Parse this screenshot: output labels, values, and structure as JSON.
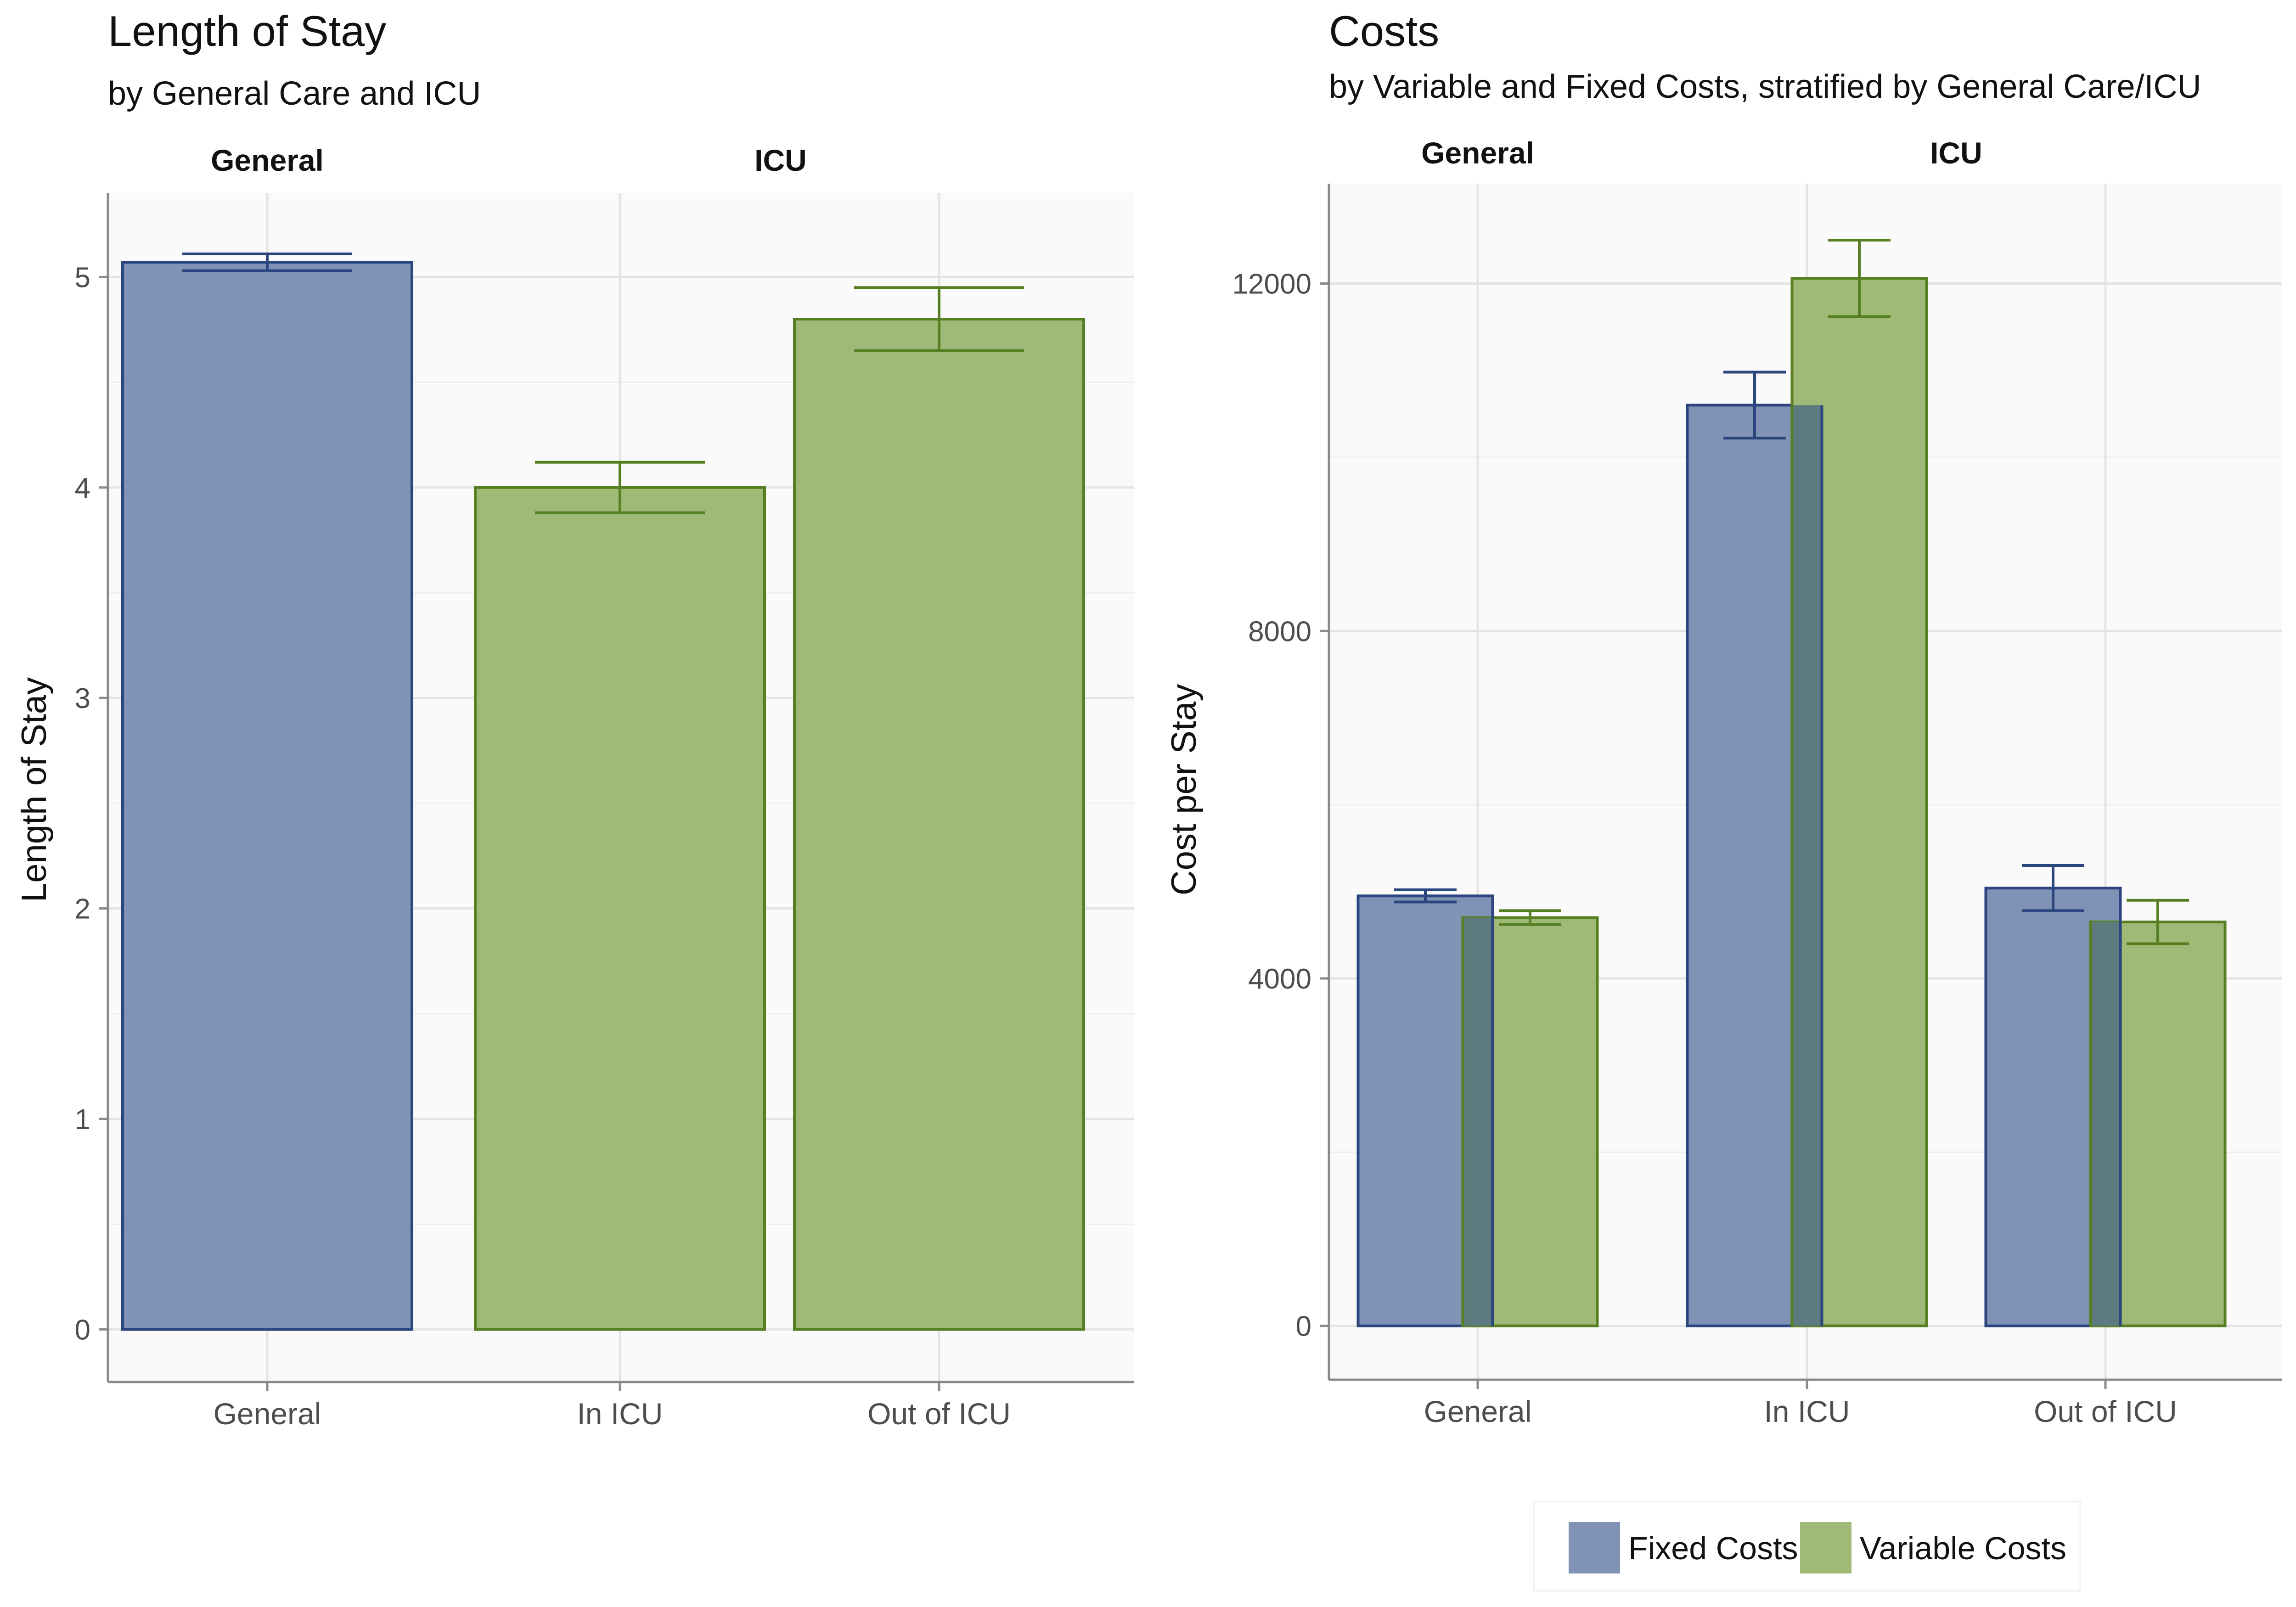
{
  "colors": {
    "fixed_fill": "#8093b6",
    "fixed_stroke": "#2b467f",
    "variable_fill": "#9fb976",
    "variable_stroke": "#567f22",
    "overlap_fill": "#5d7a7e",
    "panel_bg": "#fafafa",
    "grid": "#e4e4e4",
    "axis": "#8a8a8a",
    "tick_text": "#4d4d4d",
    "title_text": "#111111"
  },
  "chart_data": [
    {
      "type": "bar",
      "title": "Length of Stay",
      "subtitle": "by General Care and ICU",
      "ylabel": "Length of Stay",
      "xlabel": "",
      "ylim": [
        -0.25,
        5.4
      ],
      "yticks": [
        "0",
        "1",
        "2",
        "3",
        "4",
        "5"
      ],
      "facets": [
        "General",
        "ICU"
      ],
      "categories": [
        "General",
        "In ICU",
        "Out of ICU"
      ],
      "grid": true,
      "bars": [
        {
          "category": "General",
          "facet": "General",
          "series": "General",
          "value": 5.07,
          "err_low": 5.03,
          "err_high": 5.11
        },
        {
          "category": "In ICU",
          "facet": "ICU",
          "series": "ICU",
          "value": 4.0,
          "err_low": 3.88,
          "err_high": 4.12
        },
        {
          "category": "Out of ICU",
          "facet": "ICU",
          "series": "ICU",
          "value": 4.8,
          "err_low": 4.65,
          "err_high": 4.95
        }
      ]
    },
    {
      "type": "bar",
      "title": "Costs",
      "subtitle": "by Variable and Fixed Costs, stratified by General Care/ICU",
      "ylabel": "Cost per Stay",
      "xlabel": "",
      "ylim": [
        -620,
        13150
      ],
      "yticks": [
        "0",
        "4000",
        "8000",
        "12000"
      ],
      "facets": [
        "General",
        "ICU"
      ],
      "categories": [
        "General",
        "In ICU",
        "Out of ICU"
      ],
      "grid": true,
      "legend_position": "bottom",
      "legend": [
        "Fixed Costs",
        "Variable Costs"
      ],
      "series": [
        {
          "name": "Fixed Costs",
          "values": [
            4950,
            10600,
            5040
          ],
          "err_low": [
            4880,
            10220,
            4780
          ],
          "err_high": [
            5020,
            10980,
            5300
          ]
        },
        {
          "name": "Variable Costs",
          "values": [
            4700,
            12060,
            4650
          ],
          "err_low": [
            4620,
            11620,
            4400
          ],
          "err_high": [
            4780,
            12500,
            4900
          ]
        }
      ]
    }
  ]
}
